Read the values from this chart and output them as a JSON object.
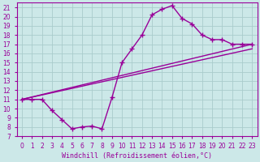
{
  "background_color": "#cce8e8",
  "grid_color": "#aacccc",
  "line_color": "#990099",
  "xlim": [
    -0.5,
    23.5
  ],
  "ylim": [
    7,
    21.5
  ],
  "xticks": [
    0,
    1,
    2,
    3,
    4,
    5,
    6,
    7,
    8,
    9,
    10,
    11,
    12,
    13,
    14,
    15,
    16,
    17,
    18,
    19,
    20,
    21,
    22,
    23
  ],
  "yticks": [
    7,
    8,
    9,
    10,
    11,
    12,
    13,
    14,
    15,
    16,
    17,
    18,
    19,
    20,
    21
  ],
  "xlabel": "Windchill (Refroidissement éolien,°C)",
  "curve_jagged_x": [
    0,
    1,
    2,
    3,
    4,
    5,
    6,
    7,
    8,
    9,
    10,
    11,
    12,
    13,
    14,
    15,
    16,
    17,
    18,
    19,
    20,
    21,
    22,
    23
  ],
  "curve_jagged_y": [
    11,
    11,
    11,
    9.8,
    8.8,
    7.8,
    8.0,
    8.1,
    7.8,
    11.2,
    15.0,
    16.5,
    18.0,
    20.2,
    20.8,
    21.2,
    19.8,
    19.2,
    18.0,
    17.5,
    17.5,
    17.0,
    17.0,
    17.0
  ],
  "curve_line1_x": [
    0,
    23
  ],
  "curve_line1_y": [
    11.0,
    17.0
  ],
  "curve_line2_x": [
    0,
    23
  ],
  "curve_line2_y": [
    11.0,
    16.5
  ],
  "marker": "+",
  "markersize": 4,
  "linewidth": 1.0,
  "tick_fontsize": 5.5,
  "label_fontsize": 6.0
}
